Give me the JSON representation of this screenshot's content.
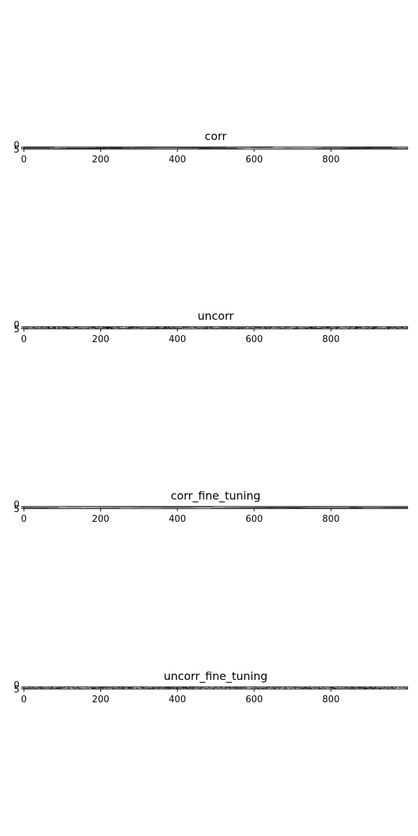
{
  "colors": {
    "background": "#ffffff",
    "axis": "#000000",
    "cmap": "gray"
  },
  "chart_data": [
    {
      "type": "heatmap",
      "title": "corr",
      "xlim": [
        0,
        999
      ],
      "ylim": [
        0,
        5
      ],
      "x_ticks": [
        0,
        200,
        400,
        600,
        800
      ],
      "y_ticks": [
        0,
        5
      ],
      "rows": 6,
      "cols": 1000,
      "pattern": "correlated",
      "grid": false
    },
    {
      "type": "heatmap",
      "title": "uncorr",
      "xlim": [
        0,
        999
      ],
      "ylim": [
        0,
        5
      ],
      "x_ticks": [
        0,
        200,
        400,
        600,
        800
      ],
      "y_ticks": [
        0,
        5
      ],
      "rows": 6,
      "cols": 1000,
      "pattern": "uncorrelated",
      "grid": false
    },
    {
      "type": "heatmap",
      "title": "corr_fine_tuning",
      "xlim": [
        0,
        999
      ],
      "ylim": [
        0,
        5
      ],
      "x_ticks": [
        0,
        200,
        400,
        600,
        800
      ],
      "y_ticks": [
        0,
        5
      ],
      "rows": 6,
      "cols": 1000,
      "pattern": "correlated",
      "grid": false
    },
    {
      "type": "heatmap",
      "title": "uncorr_fine_tuning",
      "xlim": [
        0,
        999
      ],
      "ylim": [
        0,
        5
      ],
      "x_ticks": [
        0,
        200,
        400,
        600,
        800
      ],
      "y_ticks": [
        0,
        5
      ],
      "rows": 6,
      "cols": 1000,
      "pattern": "uncorrelated",
      "grid": false
    }
  ]
}
